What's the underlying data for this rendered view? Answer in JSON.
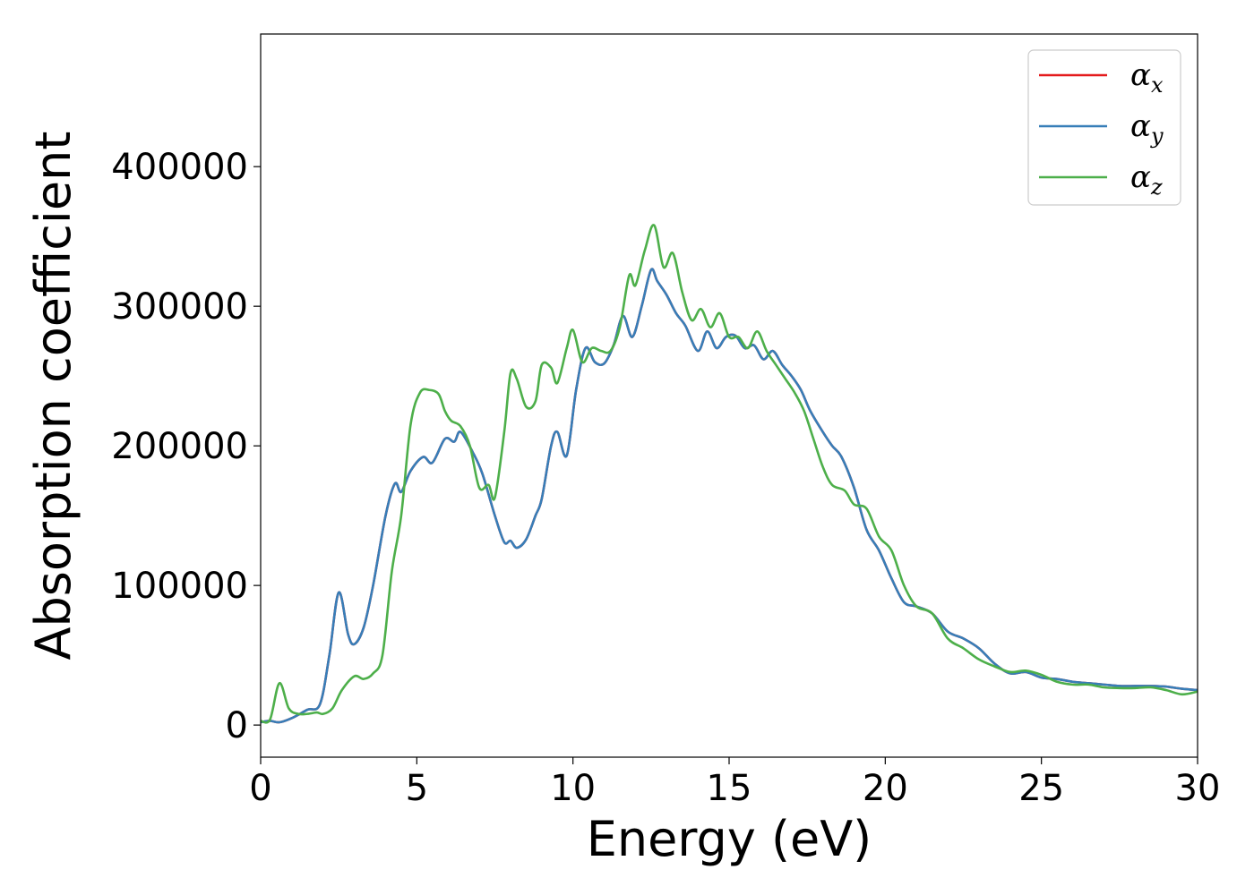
{
  "chart_data": {
    "type": "line",
    "xlabel": "Energy (eV)",
    "ylabel": "Absorption coefficient",
    "xlim": [
      0,
      30
    ],
    "ylim": [
      -23000,
      495000
    ],
    "xticks": [
      0,
      5,
      10,
      15,
      20,
      25,
      30
    ],
    "xtick_labels": [
      "0",
      "5",
      "10",
      "15",
      "20",
      "25",
      "30"
    ],
    "yticks": [
      0,
      100000,
      200000,
      300000,
      400000
    ],
    "ytick_labels": [
      "0",
      "100000",
      "200000",
      "300000",
      "400000"
    ],
    "grid": false,
    "legend_position": "top-right",
    "series": [
      {
        "name": "α",
        "subscript": "x",
        "color": "#e41a1c",
        "x": [
          0,
          0.3,
          0.6,
          1.0,
          1.5,
          1.9,
          2.2,
          2.5,
          2.8,
          3.0,
          3.3,
          3.6,
          4.0,
          4.3,
          4.5,
          4.8,
          5.2,
          5.5,
          5.9,
          6.2,
          6.4,
          6.8,
          7.1,
          7.5,
          7.8,
          8.0,
          8.2,
          8.5,
          8.8,
          9.0,
          9.3,
          9.5,
          9.8,
          10.1,
          10.4,
          10.7,
          11.0,
          11.3,
          11.6,
          11.9,
          12.2,
          12.5,
          12.7,
          13.0,
          13.3,
          13.6,
          14.0,
          14.3,
          14.6,
          14.9,
          15.2,
          15.5,
          15.8,
          16.1,
          16.4,
          16.7,
          17.0,
          17.3,
          17.6,
          18.0,
          18.3,
          18.6,
          19.0,
          19.4,
          19.8,
          20.2,
          20.6,
          21.0,
          21.5,
          22.0,
          22.5,
          23.0,
          23.5,
          24.0,
          24.5,
          25.0,
          25.5,
          26.0,
          26.5,
          27.0,
          27.5,
          28.0,
          28.5,
          29.0,
          29.5,
          30.0
        ],
        "values": [
          2000,
          3000,
          2000,
          5000,
          11000,
          15000,
          50000,
          95000,
          65000,
          58000,
          70000,
          100000,
          150000,
          173000,
          167000,
          182000,
          192000,
          188000,
          205000,
          203000,
          210000,
          195000,
          180000,
          150000,
          131000,
          132000,
          127000,
          133000,
          150000,
          162000,
          200000,
          210000,
          193000,
          240000,
          270000,
          260000,
          259000,
          272000,
          293000,
          278000,
          300000,
          326000,
          318000,
          308000,
          295000,
          286000,
          268000,
          282000,
          270000,
          278000,
          279000,
          270000,
          272000,
          262000,
          268000,
          258000,
          250000,
          240000,
          225000,
          210000,
          200000,
          192000,
          170000,
          140000,
          125000,
          105000,
          88000,
          85000,
          80000,
          67000,
          62000,
          55000,
          44000,
          37000,
          38000,
          34000,
          33000,
          31000,
          30000,
          29000,
          28000,
          28000,
          28000,
          27500,
          26000,
          25000
        ]
      },
      {
        "name": "α",
        "subscript": "y",
        "color": "#377eb8",
        "x": [
          0,
          0.3,
          0.6,
          1.0,
          1.5,
          1.9,
          2.2,
          2.5,
          2.8,
          3.0,
          3.3,
          3.6,
          4.0,
          4.3,
          4.5,
          4.8,
          5.2,
          5.5,
          5.9,
          6.2,
          6.4,
          6.8,
          7.1,
          7.5,
          7.8,
          8.0,
          8.2,
          8.5,
          8.8,
          9.0,
          9.3,
          9.5,
          9.8,
          10.1,
          10.4,
          10.7,
          11.0,
          11.3,
          11.6,
          11.9,
          12.2,
          12.5,
          12.7,
          13.0,
          13.3,
          13.6,
          14.0,
          14.3,
          14.6,
          14.9,
          15.2,
          15.5,
          15.8,
          16.1,
          16.4,
          16.7,
          17.0,
          17.3,
          17.6,
          18.0,
          18.3,
          18.6,
          19.0,
          19.4,
          19.8,
          20.2,
          20.6,
          21.0,
          21.5,
          22.0,
          22.5,
          23.0,
          23.5,
          24.0,
          24.5,
          25.0,
          25.5,
          26.0,
          26.5,
          27.0,
          27.5,
          28.0,
          28.5,
          29.0,
          29.5,
          30.0
        ],
        "values": [
          2000,
          3000,
          2000,
          5000,
          11000,
          15000,
          50000,
          95000,
          65000,
          58000,
          70000,
          100000,
          150000,
          173000,
          167000,
          182000,
          192000,
          188000,
          205000,
          203000,
          210000,
          195000,
          180000,
          150000,
          131000,
          132000,
          127000,
          133000,
          150000,
          162000,
          200000,
          210000,
          193000,
          240000,
          270000,
          260000,
          259000,
          272000,
          293000,
          278000,
          300000,
          326000,
          318000,
          308000,
          295000,
          286000,
          268000,
          282000,
          270000,
          278000,
          279000,
          270000,
          272000,
          262000,
          268000,
          258000,
          250000,
          240000,
          225000,
          210000,
          200000,
          192000,
          170000,
          140000,
          125000,
          105000,
          88000,
          85000,
          80000,
          67000,
          62000,
          55000,
          44000,
          37000,
          38000,
          34000,
          33000,
          31000,
          30000,
          29000,
          28000,
          28000,
          28000,
          27500,
          26000,
          25000
        ]
      },
      {
        "name": "α",
        "subscript": "z",
        "color": "#4daf4a",
        "x": [
          0,
          0.3,
          0.6,
          0.9,
          1.2,
          1.5,
          1.8,
          2.0,
          2.3,
          2.6,
          3.0,
          3.3,
          3.6,
          3.9,
          4.2,
          4.5,
          4.8,
          5.1,
          5.4,
          5.7,
          5.9,
          6.1,
          6.4,
          6.7,
          7.0,
          7.3,
          7.5,
          7.8,
          8.0,
          8.2,
          8.5,
          8.8,
          9.0,
          9.3,
          9.5,
          9.8,
          10.0,
          10.3,
          10.6,
          10.9,
          11.2,
          11.5,
          11.8,
          12.0,
          12.3,
          12.6,
          12.9,
          13.2,
          13.5,
          13.8,
          14.1,
          14.4,
          14.7,
          15.0,
          15.3,
          15.6,
          15.9,
          16.2,
          16.5,
          16.8,
          17.1,
          17.4,
          17.7,
          18.0,
          18.3,
          18.7,
          19.0,
          19.4,
          19.8,
          20.2,
          20.6,
          21.0,
          21.5,
          22.0,
          22.5,
          23.0,
          23.5,
          24.0,
          24.5,
          25.0,
          25.5,
          26.0,
          26.5,
          27.0,
          27.5,
          28.0,
          28.5,
          29.0,
          29.5,
          30.0
        ],
        "values": [
          3000,
          4000,
          30000,
          12000,
          8000,
          8000,
          9000,
          8000,
          12000,
          25000,
          35000,
          33000,
          37000,
          50000,
          110000,
          150000,
          215000,
          238000,
          240000,
          237000,
          225000,
          218000,
          214000,
          200000,
          170000,
          172000,
          163000,
          210000,
          252000,
          248000,
          228000,
          232000,
          258000,
          256000,
          245000,
          270000,
          283000,
          260000,
          270000,
          268000,
          268000,
          285000,
          322000,
          315000,
          340000,
          358000,
          328000,
          338000,
          310000,
          290000,
          298000,
          285000,
          295000,
          278000,
          278000,
          270000,
          282000,
          268000,
          258000,
          248000,
          238000,
          225000,
          205000,
          185000,
          172000,
          168000,
          158000,
          155000,
          135000,
          125000,
          100000,
          85000,
          80000,
          62000,
          55000,
          47000,
          42000,
          38000,
          39000,
          36000,
          31000,
          29000,
          29000,
          27000,
          26500,
          26500,
          27000,
          25000,
          22000,
          24000
        ]
      }
    ]
  }
}
